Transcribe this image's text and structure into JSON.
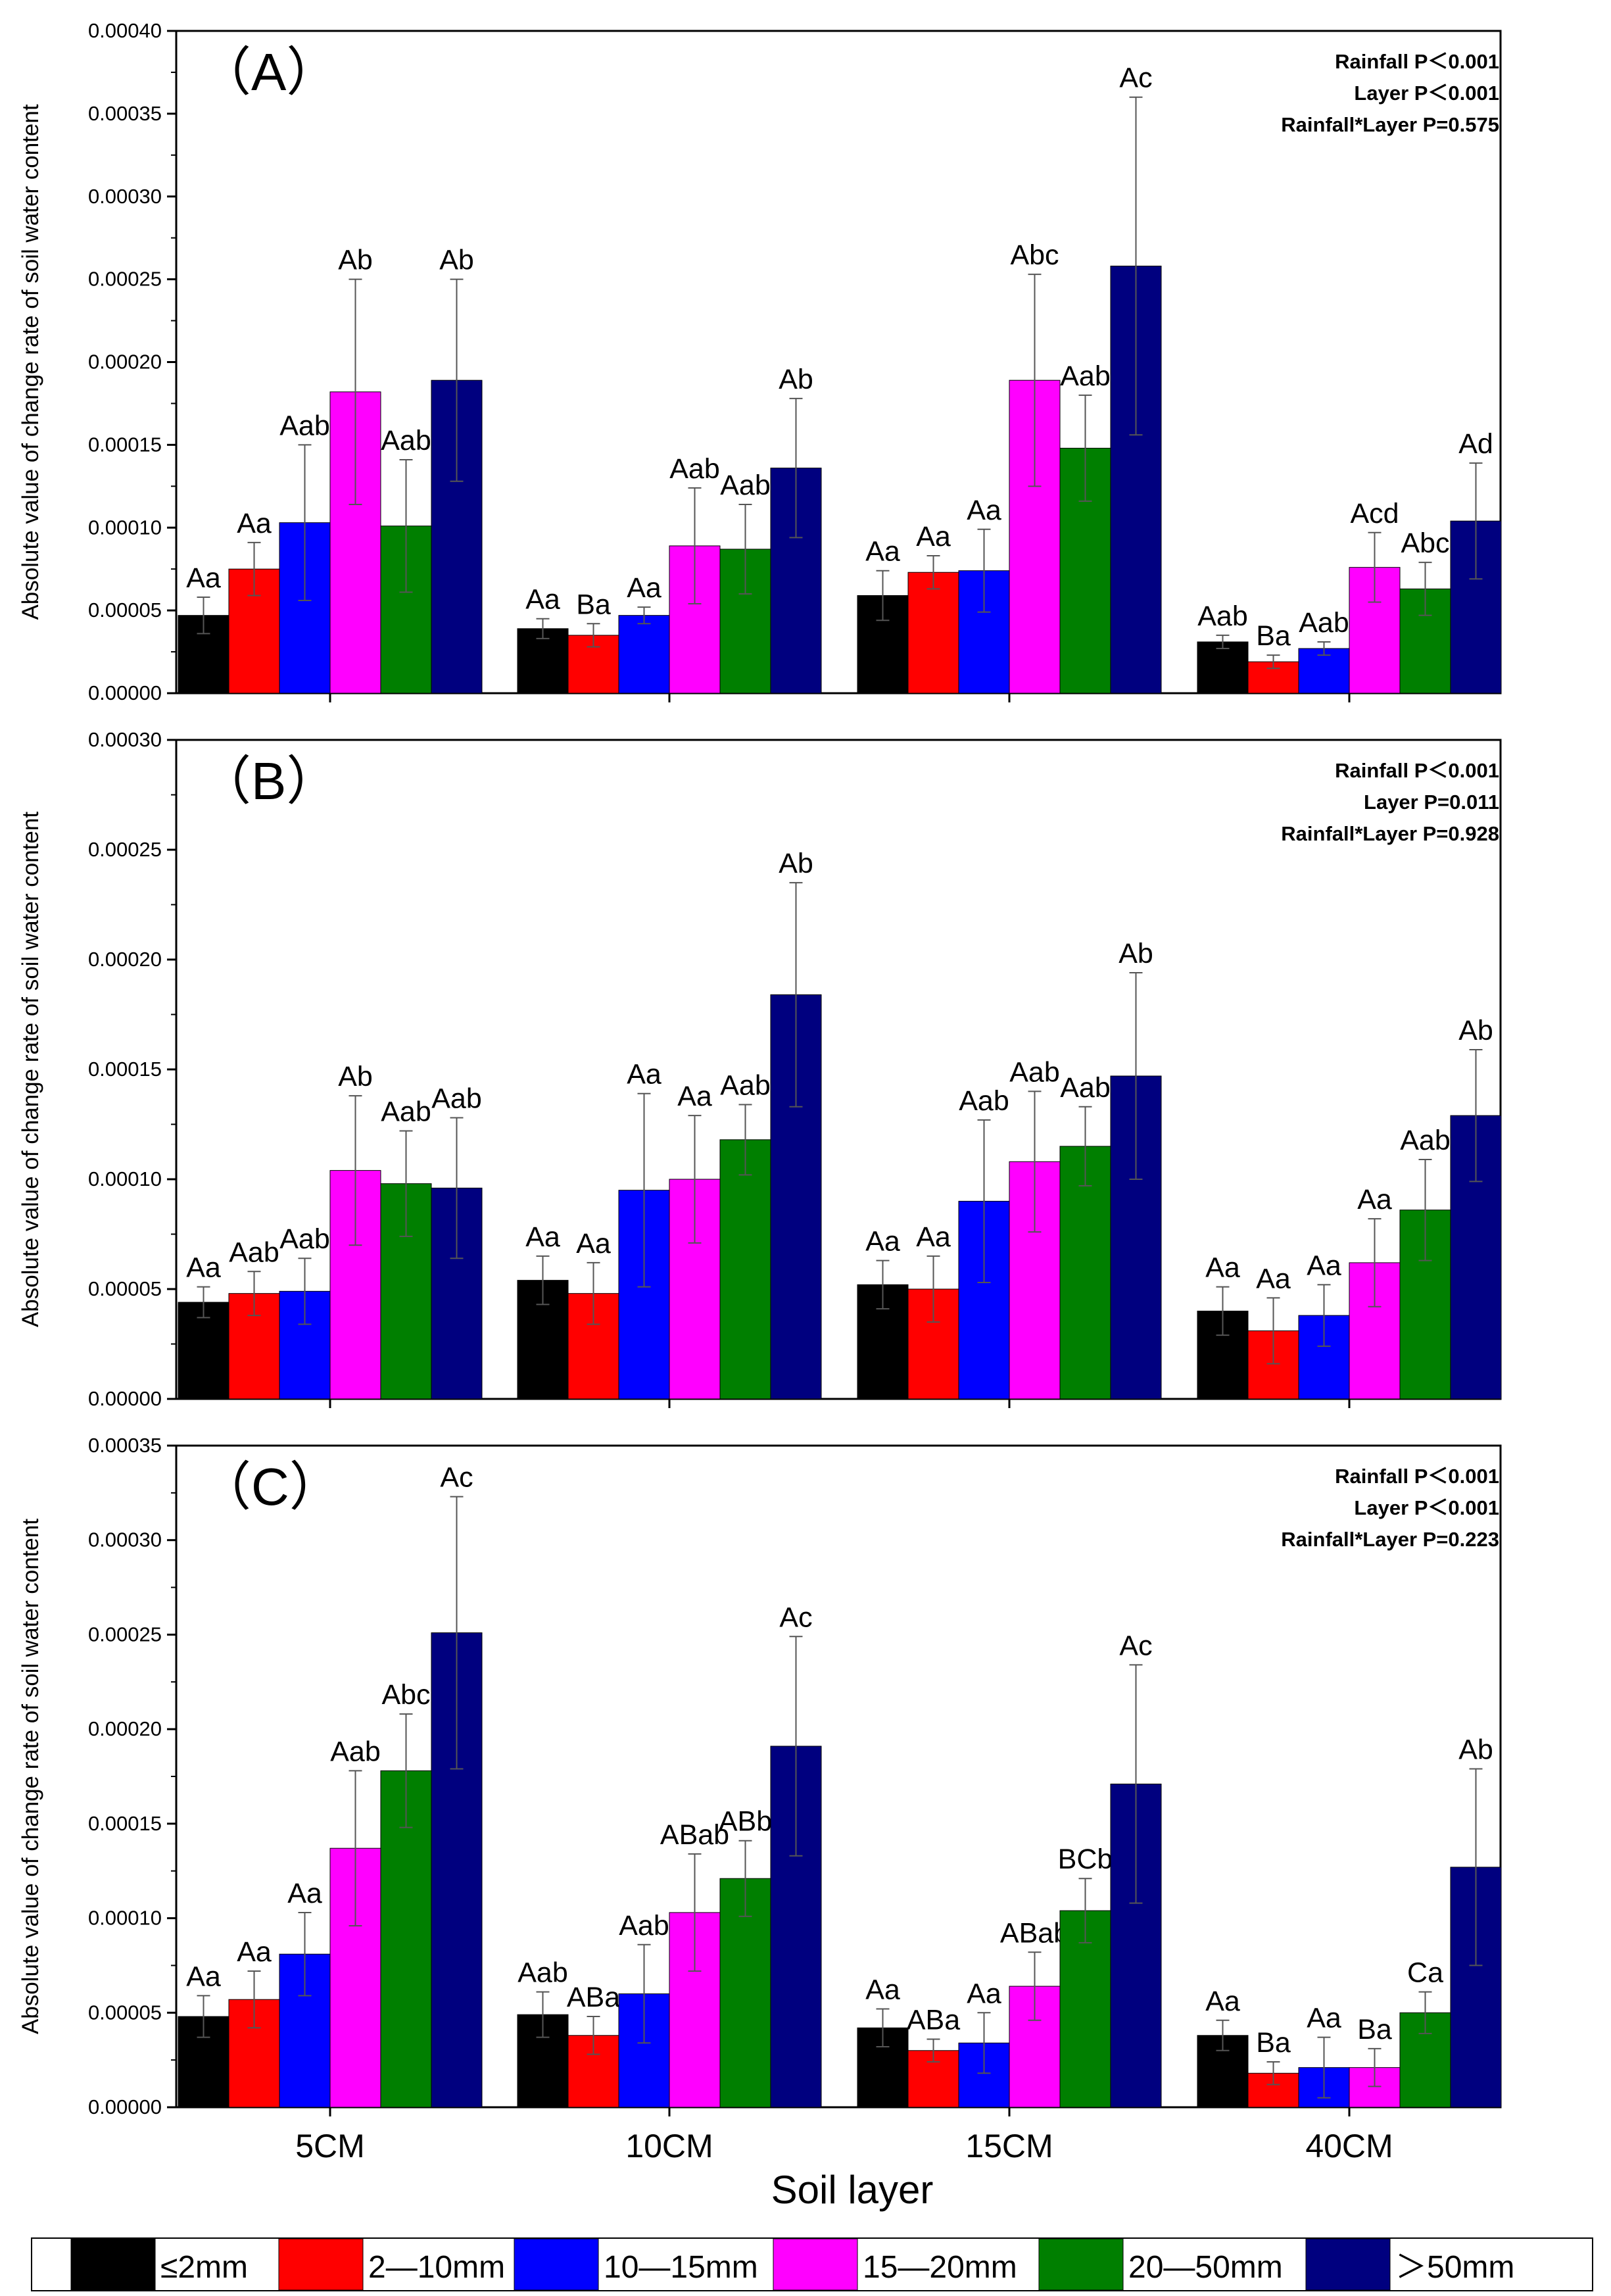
{
  "figure": {
    "xlabel": "Soil layer",
    "ylabel": "Absolute value of change rate of soil water content",
    "categories": [
      "5CM",
      "10CM",
      "15CM",
      "40CM"
    ]
  },
  "legend": [
    {
      "label": "≤2mm",
      "color": "#000000"
    },
    {
      "label": "2—10mm",
      "color": "#ff0000"
    },
    {
      "label": "10—15mm",
      "color": "#0000ff"
    },
    {
      "label": "15—20mm",
      "color": "#ff00ff"
    },
    {
      "label": "20—50mm",
      "color": "#007f00"
    },
    {
      "label": "＞50mm",
      "color": "#00007f"
    }
  ],
  "chart_data": [
    {
      "type": "bar",
      "title": "（A）",
      "categories": [
        "5CM",
        "10CM",
        "15CM",
        "40CM"
      ],
      "ylim": [
        0,
        0.0004
      ],
      "yticks": [
        "0.00000",
        "0.00005",
        "0.00010",
        "0.00015",
        "0.00020",
        "0.00025",
        "0.00030",
        "0.00035",
        "0.00040"
      ],
      "stats": [
        "Rainfall P＜0.001",
        "Layer P＜0.001",
        "Rainfall*Layer P=0.575"
      ],
      "series": [
        {
          "name": "≤2mm",
          "values": [
            4.7e-05,
            3.9e-05,
            5.9e-05,
            3.1e-05
          ],
          "errors": [
            1.1e-05,
            6e-06,
            1.5e-05,
            4e-06
          ],
          "labels": [
            "Aa",
            "Aa",
            "Aa",
            "Aab"
          ]
        },
        {
          "name": "2—10mm",
          "values": [
            7.5e-05,
            3.5e-05,
            7.3e-05,
            1.9e-05
          ],
          "errors": [
            1.6e-05,
            7e-06,
            1e-05,
            4e-06
          ],
          "labels": [
            "Aa",
            "Ba",
            "Aa",
            "Ba"
          ]
        },
        {
          "name": "10—15mm",
          "values": [
            0.000103,
            4.7e-05,
            7.4e-05,
            2.7e-05
          ],
          "errors": [
            4.7e-05,
            5e-06,
            2.5e-05,
            4e-06
          ],
          "labels": [
            "Aab",
            "Aa",
            "Aa",
            "Aab"
          ]
        },
        {
          "name": "15—20mm",
          "values": [
            0.000182,
            8.9e-05,
            0.000189,
            7.6e-05
          ],
          "errors": [
            6.8e-05,
            3.5e-05,
            6.4e-05,
            2.1e-05
          ],
          "labels": [
            "Ab",
            "Aab",
            "Abc",
            "Acd"
          ]
        },
        {
          "name": "20—50mm",
          "values": [
            0.000101,
            8.7e-05,
            0.000148,
            6.3e-05
          ],
          "errors": [
            4e-05,
            2.7e-05,
            3.2e-05,
            1.6e-05
          ],
          "labels": [
            "Aab",
            "Aab",
            "Aab",
            "Abc"
          ]
        },
        {
          "name": "＞50mm",
          "values": [
            0.000189,
            0.000136,
            0.000258,
            0.000104
          ],
          "errors": [
            6.1e-05,
            4.2e-05,
            0.000102,
            3.5e-05
          ],
          "labels": [
            "Ab",
            "Ab",
            "Ac",
            "Ad"
          ]
        }
      ]
    },
    {
      "type": "bar",
      "title": "（B）",
      "categories": [
        "5CM",
        "10CM",
        "15CM",
        "40CM"
      ],
      "ylim": [
        0,
        0.0003
      ],
      "yticks": [
        "0.00000",
        "0.00005",
        "0.00010",
        "0.00015",
        "0.00020",
        "0.00025",
        "0.00030"
      ],
      "stats": [
        "Rainfall P＜0.001",
        "Layer P=0.011",
        "Rainfall*Layer P=0.928"
      ],
      "series": [
        {
          "name": "≤2mm",
          "values": [
            4.4e-05,
            5.4e-05,
            5.2e-05,
            4e-05
          ],
          "errors": [
            7e-06,
            1.1e-05,
            1.1e-05,
            1.1e-05
          ],
          "labels": [
            "Aa",
            "Aa",
            "Aa",
            "Aa"
          ]
        },
        {
          "name": "2—10mm",
          "values": [
            4.8e-05,
            4.8e-05,
            5e-05,
            3.1e-05
          ],
          "errors": [
            1e-05,
            1.4e-05,
            1.5e-05,
            1.5e-05
          ],
          "labels": [
            "Aab",
            "Aa",
            "Aa",
            "Aa"
          ]
        },
        {
          "name": "10—15mm",
          "values": [
            4.9e-05,
            9.5e-05,
            9e-05,
            3.8e-05
          ],
          "errors": [
            1.5e-05,
            4.4e-05,
            3.7e-05,
            1.4e-05
          ],
          "labels": [
            "Aab",
            "Aa",
            "Aab",
            "Aa"
          ]
        },
        {
          "name": "15—20mm",
          "values": [
            0.000104,
            0.0001,
            0.000108,
            6.2e-05
          ],
          "errors": [
            3.4e-05,
            2.9e-05,
            3.2e-05,
            2e-05
          ],
          "labels": [
            "Ab",
            "Aa",
            "Aab",
            "Aa"
          ]
        },
        {
          "name": "20—50mm",
          "values": [
            9.8e-05,
            0.000118,
            0.000115,
            8.6e-05
          ],
          "errors": [
            2.4e-05,
            1.6e-05,
            1.8e-05,
            2.3e-05
          ],
          "labels": [
            "Aab",
            "Aab",
            "Aab",
            "Aab"
          ]
        },
        {
          "name": "＞50mm",
          "values": [
            9.6e-05,
            0.000184,
            0.000147,
            0.000129
          ],
          "errors": [
            3.2e-05,
            5.1e-05,
            4.7e-05,
            3e-05
          ],
          "labels": [
            "Aab",
            "Ab",
            "Ab",
            "Ab"
          ]
        }
      ]
    },
    {
      "type": "bar",
      "title": "（C）",
      "categories": [
        "5CM",
        "10CM",
        "15CM",
        "40CM"
      ],
      "ylim": [
        0,
        0.00035
      ],
      "yticks": [
        "0.00000",
        "0.00005",
        "0.00010",
        "0.00015",
        "0.00020",
        "0.00025",
        "0.00030",
        "0.00035"
      ],
      "stats": [
        "Rainfall P＜0.001",
        "Layer P＜0.001",
        "Rainfall*Layer P=0.223"
      ],
      "series": [
        {
          "name": "≤2mm",
          "values": [
            4.8e-05,
            4.9e-05,
            4.2e-05,
            3.8e-05
          ],
          "errors": [
            1.1e-05,
            1.2e-05,
            1e-05,
            8e-06
          ],
          "labels": [
            "Aa",
            "Aab",
            "Aa",
            "Aa"
          ]
        },
        {
          "name": "2—10mm",
          "values": [
            5.7e-05,
            3.8e-05,
            3e-05,
            1.8e-05
          ],
          "errors": [
            1.5e-05,
            1e-05,
            6e-06,
            6e-06
          ],
          "labels": [
            "Aa",
            "ABa",
            "ABa",
            "Ba"
          ]
        },
        {
          "name": "10—15mm",
          "values": [
            8.1e-05,
            6e-05,
            3.4e-05,
            2.1e-05
          ],
          "errors": [
            2.2e-05,
            2.6e-05,
            1.6e-05,
            1.6e-05
          ],
          "labels": [
            "Aa",
            "Aab",
            "Aa",
            "Aa"
          ]
        },
        {
          "name": "15—20mm",
          "values": [
            0.000137,
            0.000103,
            6.4e-05,
            2.1e-05
          ],
          "errors": [
            4.1e-05,
            3.1e-05,
            1.8e-05,
            1e-05
          ],
          "labels": [
            "Aab",
            "ABab",
            "ABab",
            "Ba"
          ]
        },
        {
          "name": "20—50mm",
          "values": [
            0.000178,
            0.000121,
            0.000104,
            5e-05
          ],
          "errors": [
            3e-05,
            2e-05,
            1.7e-05,
            1.1e-05
          ],
          "labels": [
            "Abc",
            "ABb",
            "BCb",
            "Ca"
          ]
        },
        {
          "name": "＞50mm",
          "values": [
            0.000251,
            0.000191,
            0.000171,
            0.000127
          ],
          "errors": [
            7.2e-05,
            5.8e-05,
            6.3e-05,
            5.2e-05
          ],
          "labels": [
            "Ac",
            "Ac",
            "Ac",
            "Ab"
          ]
        }
      ]
    }
  ]
}
